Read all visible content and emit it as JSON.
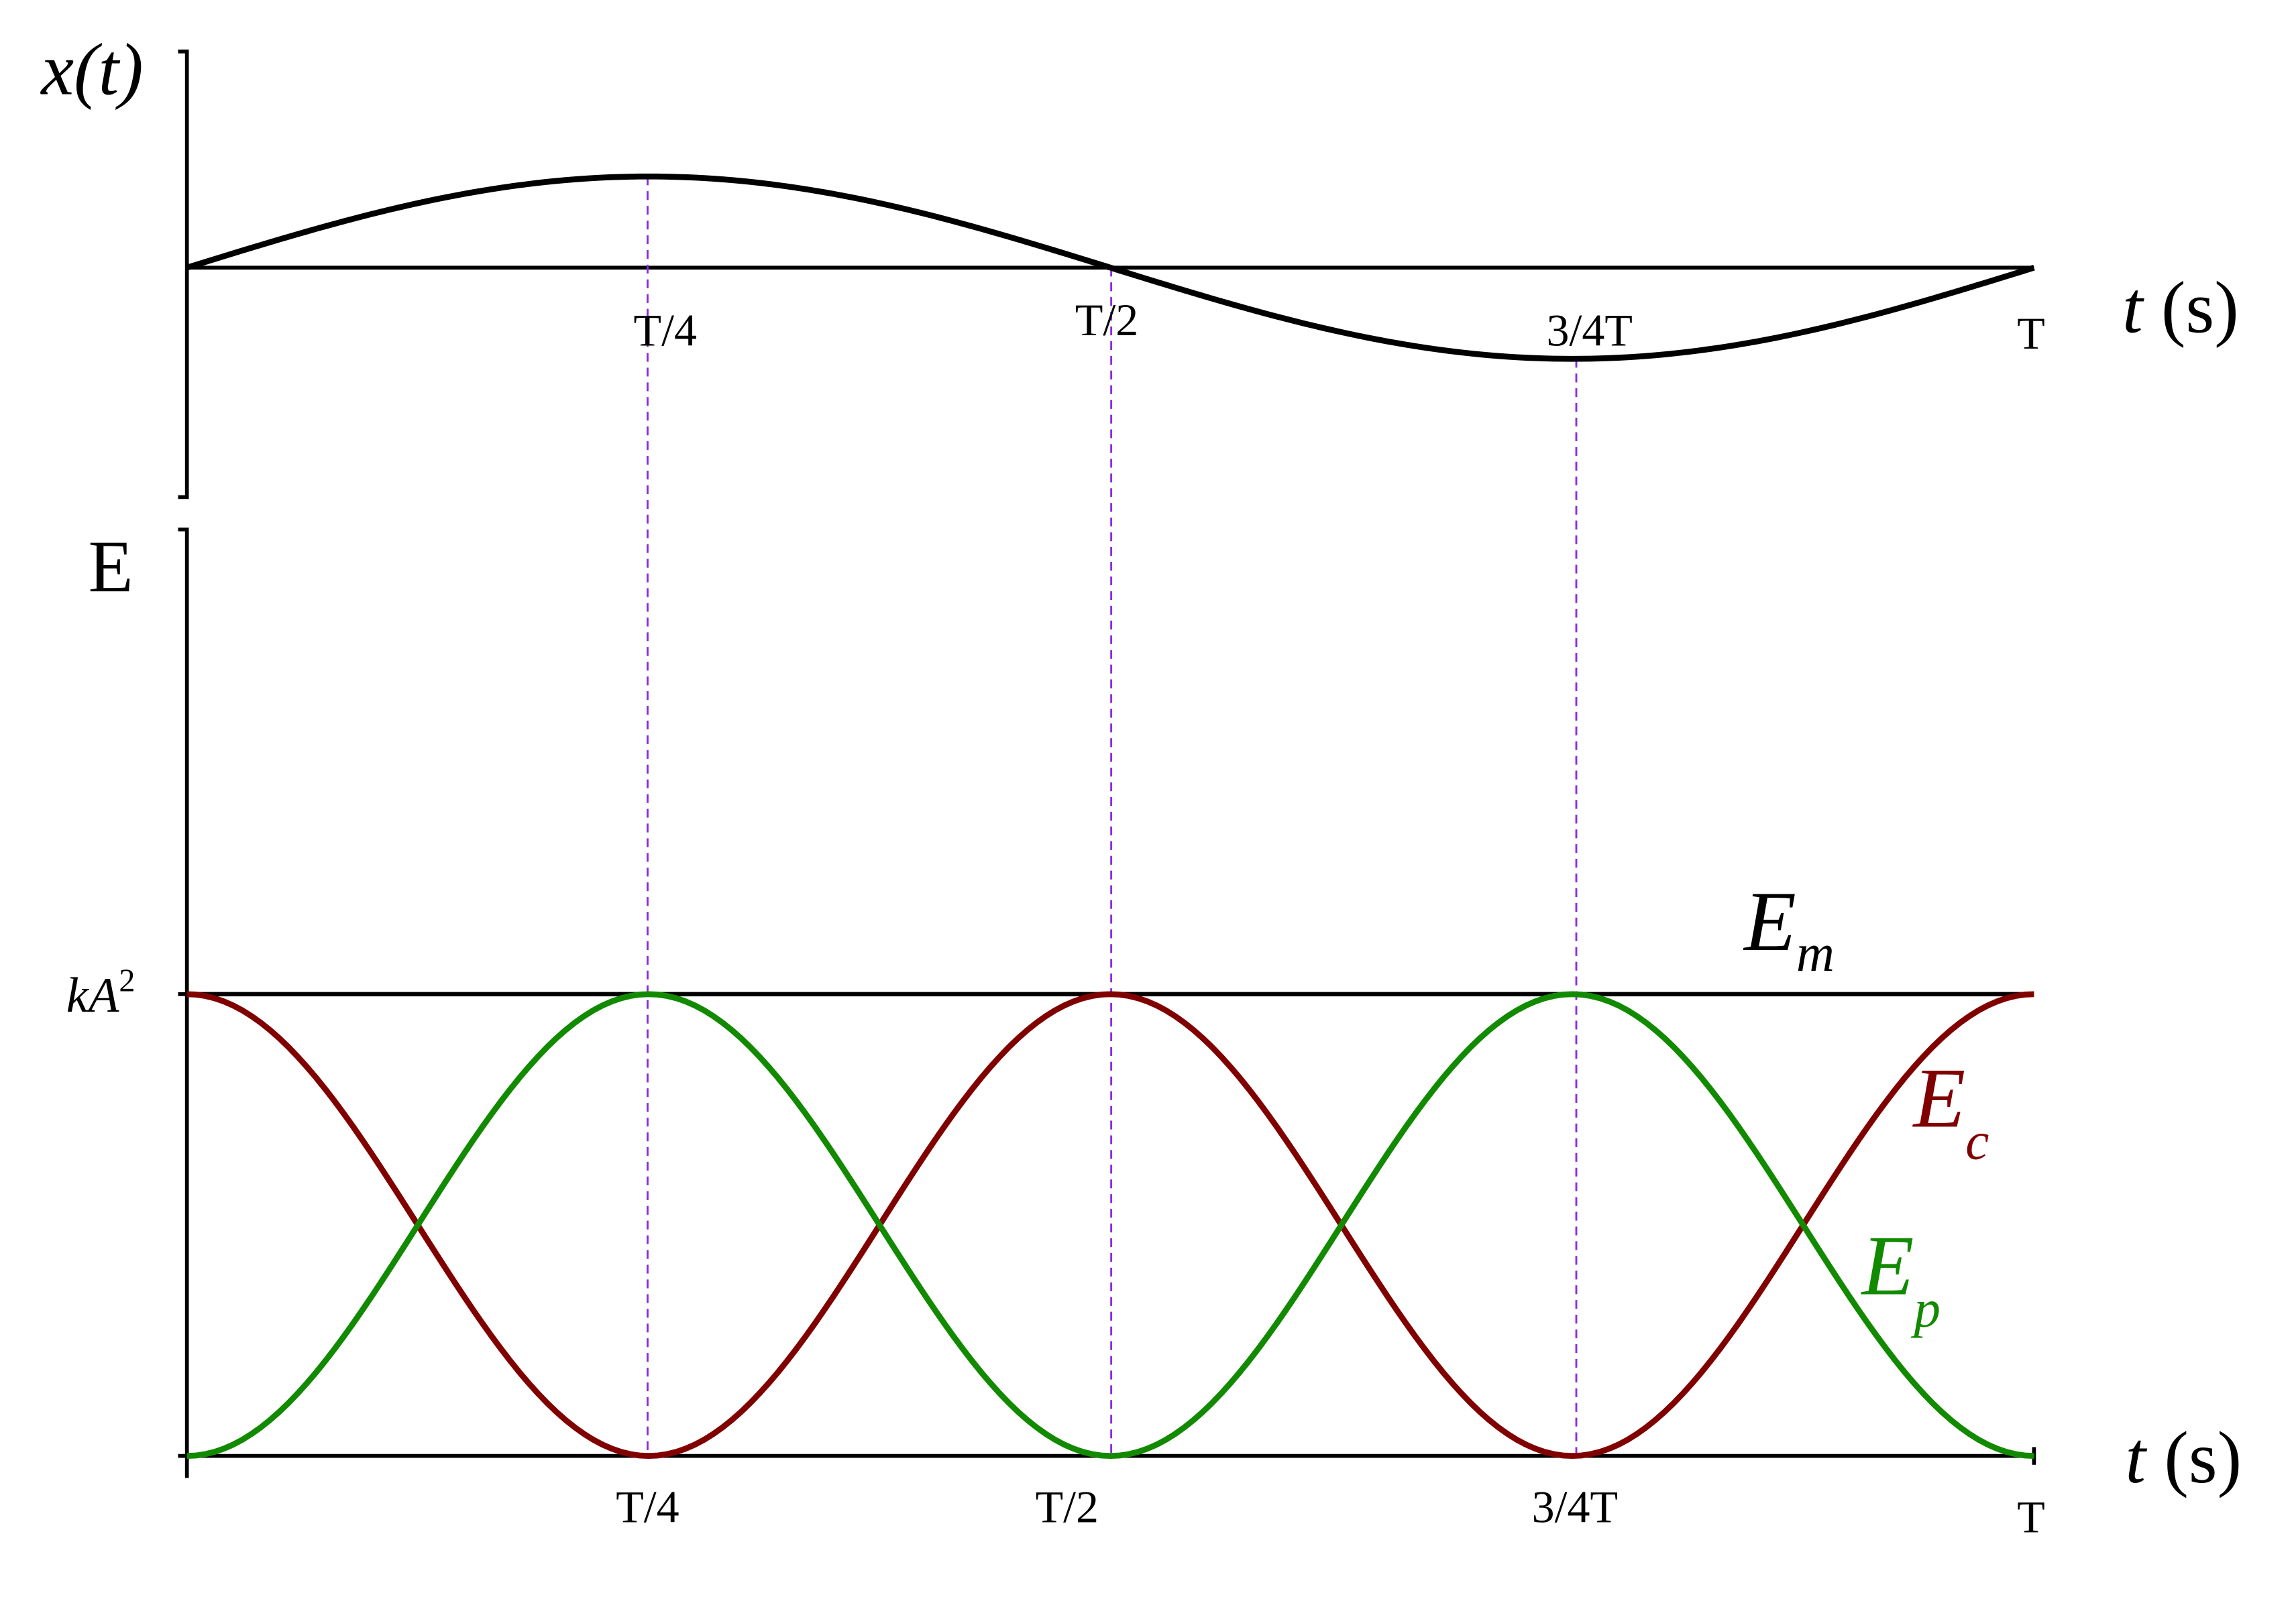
{
  "top_plot": {
    "y_label": "x(t)",
    "x_label": {
      "var": "t",
      "unit": "(s)"
    },
    "ticks": [
      "T/4",
      "T/2",
      "3/4T",
      "T"
    ]
  },
  "bottom_plot": {
    "y_label": "E",
    "y_tick": {
      "base": "kA",
      "sup": "2"
    },
    "x_label": {
      "var": "t",
      "unit": "(s)"
    },
    "ticks": [
      "T/4",
      "T/2",
      "3/4T",
      "T"
    ],
    "curves": {
      "em": {
        "base": "E",
        "sub": "m"
      },
      "ec": {
        "base": "E",
        "sub": "c"
      },
      "ep": {
        "base": "E",
        "sub": "p"
      }
    }
  }
}
